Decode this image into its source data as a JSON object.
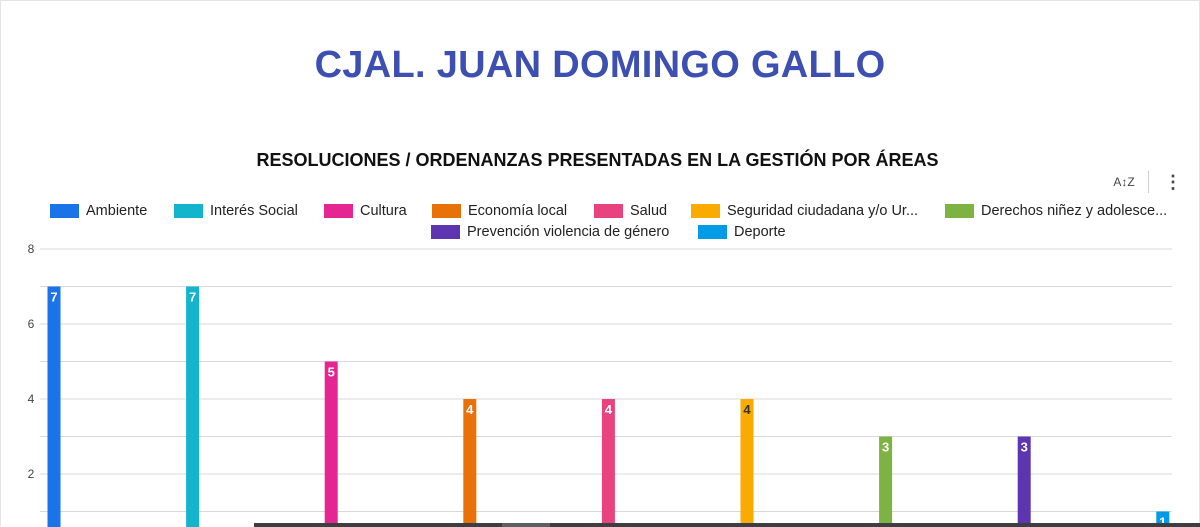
{
  "page": {
    "title": "CJAL. JUAN DOMINGO GALLO"
  },
  "toolbar": {
    "sort_icon": "sort-az-icon",
    "sort_label": "A↕Z",
    "more_icon": "more-vertical-icon",
    "more_label": "⋮"
  },
  "legend": {
    "items": [
      {
        "label": "Ambiente",
        "color": "#1a73e8"
      },
      {
        "label": "Interés Social",
        "color": "#12b5cb"
      },
      {
        "label": "Cultura",
        "color": "#e52592"
      },
      {
        "label": "Economía local",
        "color": "#e8710a"
      },
      {
        "label": "Salud",
        "color": "#e8437f"
      },
      {
        "label": "Seguridad ciudadana y/o Ur...",
        "color": "#f9ab00"
      },
      {
        "label": "Derechos niñez y adolesce...",
        "color": "#7cb342"
      },
      {
        "label": "Prevención violencia de género",
        "color": "#5e35b1"
      },
      {
        "label": "Deporte",
        "color": "#039be5"
      }
    ]
  },
  "chart_data": {
    "type": "bar",
    "title": "RESOLUCIONES / ORDENANZAS PRESENTADAS EN LA GESTIÓN POR ÁREAS",
    "xlabel": "",
    "ylabel": "",
    "ylim": [
      0,
      8
    ],
    "yticks": [
      "2",
      "4",
      "6",
      "8"
    ],
    "grid": true,
    "legend_position": "top",
    "series": [
      {
        "name": "Ambiente",
        "value": 7,
        "label": "7",
        "color": "#1a73e8",
        "label_color": "#ffffff"
      },
      {
        "name": "Interés Social",
        "value": 7,
        "label": "7",
        "color": "#12b5cb",
        "label_color": "#ffffff"
      },
      {
        "name": "Cultura",
        "value": 5,
        "label": "5",
        "color": "#e52592",
        "label_color": "#ffffff"
      },
      {
        "name": "Economía local",
        "value": 4,
        "label": "4",
        "color": "#e8710a",
        "label_color": "#ffffff"
      },
      {
        "name": "Salud",
        "value": 4,
        "label": "4",
        "color": "#e8437f",
        "label_color": "#ffffff"
      },
      {
        "name": "Seguridad ciudadana y/o Ur...",
        "value": 4,
        "label": "4",
        "color": "#f9ab00",
        "label_color": "#333333"
      },
      {
        "name": "Derechos niñez y adolesce...",
        "value": 3,
        "label": "3",
        "color": "#7cb342",
        "label_color": "#ffffff"
      },
      {
        "name": "Prevención violencia de género",
        "value": 3,
        "label": "3",
        "color": "#5e35b1",
        "label_color": "#ffffff"
      },
      {
        "name": "Deporte",
        "value": 1,
        "label": "1",
        "color": "#039be5",
        "label_color": "#ffffff"
      }
    ]
  }
}
